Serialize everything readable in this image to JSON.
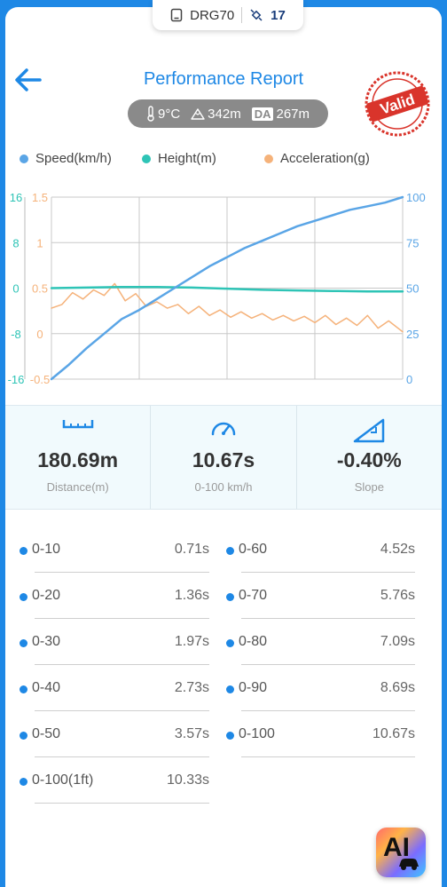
{
  "device": {
    "name": "DRG70",
    "satellites": "17"
  },
  "header": {
    "title": "Performance Report",
    "stamp_text": "Valid"
  },
  "env": {
    "temperature": "9°C",
    "altitude": "342m",
    "da_label": "DA",
    "density_altitude": "267m"
  },
  "legend": [
    "Speed(km/h)",
    "Height(m)",
    "Acceleration(g)"
  ],
  "colors": {
    "speed": "#5aa5e6",
    "height": "#2ec4b6",
    "acceleration": "#f5b27a",
    "accent": "#1e88e5"
  },
  "chart_data": {
    "type": "line",
    "y_left_height_ticks": [
      "16",
      "8",
      "0",
      "-8",
      "-16"
    ],
    "y_left_accel_ticks": [
      "1.5",
      "1",
      "0.5",
      "0",
      "-0.5"
    ],
    "y_right_speed_ticks": [
      "100",
      "75",
      "50",
      "25",
      "0"
    ],
    "speed_range": [
      0,
      100
    ],
    "height_range": [
      -16,
      16
    ],
    "accel_range": [
      -0.5,
      1.5
    ],
    "series": [
      {
        "name": "Speed(km/h)",
        "axis": "right",
        "x": [
          0,
          0.05,
          0.1,
          0.15,
          0.2,
          0.25,
          0.3,
          0.35,
          0.4,
          0.45,
          0.5,
          0.55,
          0.6,
          0.65,
          0.7,
          0.75,
          0.8,
          0.85,
          0.9,
          0.95,
          1.0
        ],
        "values": [
          0,
          8,
          17,
          25,
          33,
          38,
          44,
          50,
          56,
          62,
          67,
          72,
          76,
          80,
          84,
          87,
          90,
          93,
          95,
          97,
          100
        ]
      },
      {
        "name": "Height(m)",
        "axis": "left",
        "x": [
          0,
          0.1,
          0.2,
          0.3,
          0.4,
          0.5,
          0.6,
          0.7,
          0.8,
          0.9,
          1.0
        ],
        "values": [
          0,
          0.1,
          0.2,
          0.2,
          0.1,
          -0.1,
          -0.3,
          -0.4,
          -0.5,
          -0.6,
          -0.6
        ]
      },
      {
        "name": "Acceleration(g)",
        "axis": "left-inner",
        "x": [
          0,
          0.03,
          0.06,
          0.09,
          0.12,
          0.15,
          0.18,
          0.21,
          0.24,
          0.27,
          0.3,
          0.33,
          0.36,
          0.39,
          0.42,
          0.45,
          0.48,
          0.51,
          0.54,
          0.57,
          0.6,
          0.63,
          0.66,
          0.69,
          0.72,
          0.75,
          0.78,
          0.81,
          0.84,
          0.87,
          0.9,
          0.93,
          0.96,
          1.0
        ],
        "values": [
          0.28,
          0.32,
          0.45,
          0.38,
          0.48,
          0.42,
          0.55,
          0.36,
          0.44,
          0.3,
          0.35,
          0.28,
          0.32,
          0.22,
          0.3,
          0.2,
          0.26,
          0.18,
          0.24,
          0.17,
          0.22,
          0.15,
          0.2,
          0.14,
          0.19,
          0.12,
          0.2,
          0.1,
          0.17,
          0.09,
          0.2,
          0.06,
          0.14,
          0.02
        ]
      }
    ]
  },
  "stats": [
    {
      "value": "180.69m",
      "label": "Distance(m)",
      "icon": "ruler-icon"
    },
    {
      "value": "10.67s",
      "label": "0-100 km/h",
      "icon": "speedometer-icon"
    },
    {
      "value": "-0.40%",
      "label": "Slope",
      "icon": "slope-icon"
    }
  ],
  "splits": [
    {
      "label": "0-10",
      "time": "0.71s"
    },
    {
      "label": "0-60",
      "time": "4.52s"
    },
    {
      "label": "0-20",
      "time": "1.36s"
    },
    {
      "label": "0-70",
      "time": "5.76s"
    },
    {
      "label": "0-30",
      "time": "1.97s"
    },
    {
      "label": "0-80",
      "time": "7.09s"
    },
    {
      "label": "0-40",
      "time": "2.73s"
    },
    {
      "label": "0-90",
      "time": "8.69s"
    },
    {
      "label": "0-50",
      "time": "3.57s"
    },
    {
      "label": "0-100",
      "time": "10.67s"
    },
    {
      "label": "0-100(1ft)",
      "time": "10.33s"
    }
  ],
  "ai_button": {
    "text": "AI"
  }
}
